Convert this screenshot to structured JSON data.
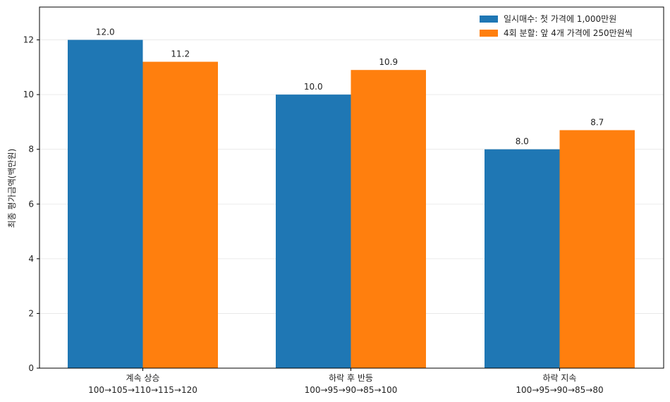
{
  "chart_data": {
    "type": "bar",
    "title": "",
    "xlabel": "",
    "ylabel": "최종 평가금액(백만원)",
    "ylim": [
      0,
      13.2
    ],
    "yticks": [
      0,
      2,
      4,
      6,
      8,
      10,
      12
    ],
    "grid": true,
    "legend_position": "top-right",
    "categories": [
      {
        "name": "계속 상승",
        "path": "100→105→110→115→120"
      },
      {
        "name": "하락 후 반등",
        "path": "100→95→90→85→100"
      },
      {
        "name": "하락 지속",
        "path": "100→95→90→85→80"
      }
    ],
    "series": [
      {
        "name": "일시매수: 첫 가격에 1,000만원",
        "color": "#1f77b4",
        "values": [
          12.0,
          10.0,
          8.0
        ],
        "labels": [
          "12.0",
          "10.0",
          "8.0"
        ]
      },
      {
        "name": "4회 분할: 앞 4개 가격에 250만원씩",
        "color": "#ff7f0e",
        "values": [
          11.2,
          10.9,
          8.7
        ],
        "labels": [
          "11.2",
          "10.9",
          "8.7"
        ]
      }
    ]
  }
}
